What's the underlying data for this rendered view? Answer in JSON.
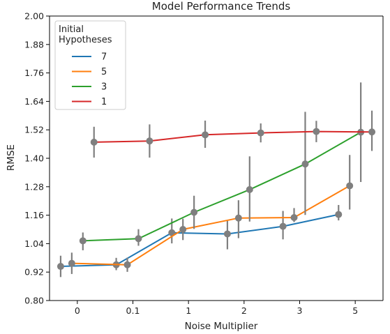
{
  "chart_data": {
    "type": "line",
    "title": "Model Performance Trends",
    "xlabel": "Noise Multiplier",
    "ylabel": "RMSE",
    "categories": [
      "0",
      "0.1",
      "1",
      "2",
      "3",
      "5"
    ],
    "ylim": [
      0.8,
      2.0
    ],
    "yticks": [
      "0.80",
      "0.92",
      "1.04",
      "1.16",
      "1.28",
      "1.40",
      "1.52",
      "1.64",
      "1.76",
      "1.88",
      "2.00"
    ],
    "grid": false,
    "legend": {
      "title": "Initial\nHypotheses",
      "placement": "top-left",
      "entries": [
        "7",
        "5",
        "3",
        "1"
      ]
    },
    "series": [
      {
        "name": "7",
        "color": "#1f77b4",
        "values": [
          0.944,
          0.951,
          1.086,
          1.081,
          1.113,
          1.163
        ],
        "ci_low": [
          0.899,
          0.928,
          1.041,
          1.016,
          1.058,
          1.138
        ],
        "ci_high": [
          0.989,
          0.98,
          1.146,
          1.136,
          1.178,
          1.203
        ]
      },
      {
        "name": "5",
        "color": "#ff7f0e",
        "values": [
          0.957,
          0.951,
          1.1,
          1.148,
          1.15,
          1.284
        ],
        "ci_low": [
          0.912,
          0.921,
          1.055,
          1.063,
          1.131,
          1.184
        ],
        "ci_high": [
          1.002,
          0.981,
          1.145,
          1.223,
          1.19,
          1.414
        ]
      },
      {
        "name": "3",
        "color": "#2ca02c",
        "values": [
          1.052,
          1.061,
          1.172,
          1.268,
          1.376,
          1.51
        ],
        "ci_low": [
          1.012,
          1.031,
          1.102,
          1.133,
          1.161,
          1.3
        ],
        "ci_high": [
          1.087,
          1.101,
          1.242,
          1.408,
          1.596,
          1.72
        ]
      },
      {
        "name": "1",
        "color": "#d62728",
        "values": [
          1.468,
          1.473,
          1.499,
          1.507,
          1.513,
          1.511
        ],
        "ci_low": [
          1.403,
          1.403,
          1.444,
          1.467,
          1.468,
          1.431
        ],
        "ci_high": [
          1.533,
          1.543,
          1.559,
          1.547,
          1.558,
          1.601
        ]
      }
    ],
    "marker_color": "#7f7f7f"
  }
}
